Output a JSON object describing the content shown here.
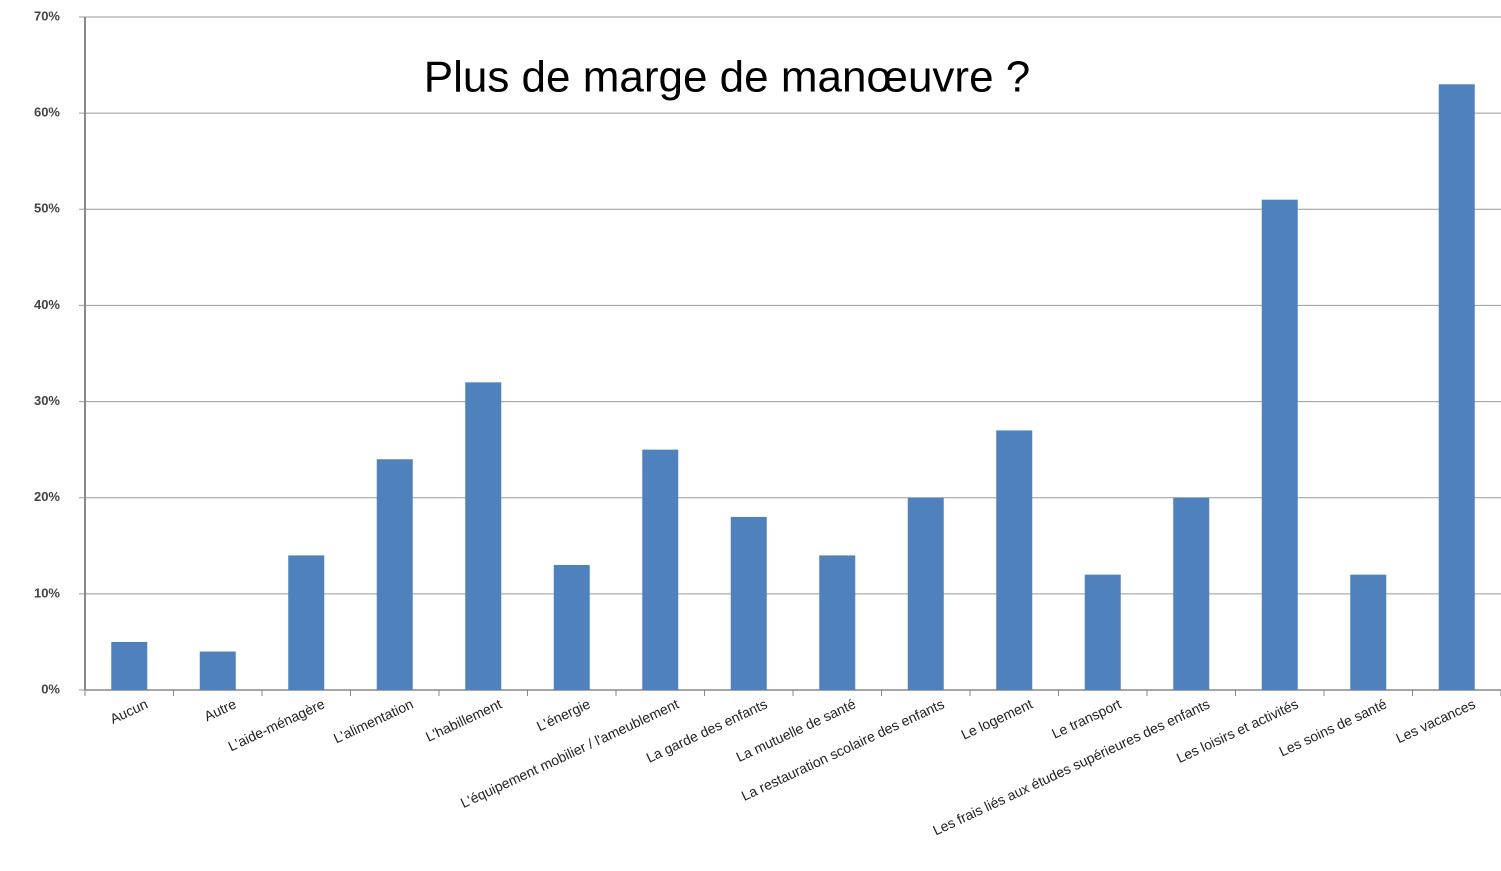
{
  "chart_data": {
    "type": "bar",
    "title": "Plus de marge de manœuvre ?",
    "categories": [
      "Aucun",
      "Autre",
      "L'aide-ménagère",
      "L'alimentation",
      "L'habillement",
      "L'énergie",
      "L'équipement mobilier / l'ameublement",
      "La garde des enfants",
      "La mutuelle de santé",
      "La restauration scolaire des enfants",
      "Le logement",
      "Le transport",
      "Les frais liés aux études supérieures des enfants",
      "Les loisirs et activités",
      "Les soins de santé",
      "Les vacances"
    ],
    "values": [
      5,
      4,
      14,
      24,
      32,
      13,
      25,
      18,
      14,
      20,
      27,
      12,
      20,
      51,
      12,
      63
    ],
    "color": "#4f81bd",
    "ylim": [
      0,
      70
    ],
    "yticks": [
      {
        "value": 0,
        "label": "0%"
      },
      {
        "value": 10,
        "label": "10%"
      },
      {
        "value": 20,
        "label": "20%"
      },
      {
        "value": 30,
        "label": "30%"
      },
      {
        "value": 40,
        "label": "40%"
      },
      {
        "value": 50,
        "label": "50%"
      },
      {
        "value": 60,
        "label": "60%"
      },
      {
        "value": 70,
        "label": "70%"
      }
    ],
    "grid": true
  }
}
